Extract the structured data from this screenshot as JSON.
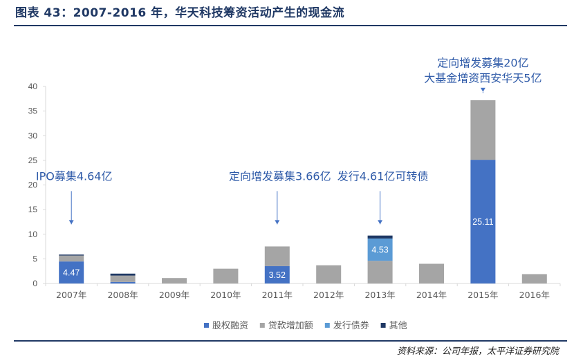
{
  "header": {
    "title": "图表 43：2007-2016 年，华天科技筹资活动产生的现金流"
  },
  "footer": {
    "source": "资料来源：公司年报，太平洋证券研究院"
  },
  "chart_data": {
    "type": "bar",
    "stacked": true,
    "categories": [
      "2007年",
      "2008年",
      "2009年",
      "2010年",
      "2011年",
      "2012年",
      "2013年",
      "2014年",
      "2015年",
      "2016年"
    ],
    "series": [
      {
        "name": "股权融资",
        "color": "#4472c4",
        "values": [
          4.47,
          0.3,
          0,
          0,
          3.52,
          0,
          0,
          0,
          25.11,
          0
        ]
      },
      {
        "name": "贷款增加额",
        "color": "#a5a5a5",
        "values": [
          1.2,
          1.3,
          1.1,
          3.0,
          4.0,
          3.7,
          4.6,
          4.0,
          12.1,
          1.9
        ]
      },
      {
        "name": "发行债券",
        "color": "#5b9bd5",
        "values": [
          0,
          0,
          0,
          0,
          0,
          0,
          4.53,
          0,
          0,
          0
        ]
      },
      {
        "name": "其他",
        "color": "#1f3864",
        "values": [
          0.2,
          0.4,
          0,
          0,
          0,
          0,
          0.6,
          0,
          0,
          0
        ]
      }
    ],
    "ylim": [
      0,
      40
    ],
    "yticks": [
      0,
      5,
      10,
      15,
      20,
      25,
      30,
      35,
      40
    ],
    "grid": false,
    "legend_position": "bottom",
    "data_labels": [
      {
        "category": "2007年",
        "series": "股权融资",
        "text": "4.47"
      },
      {
        "category": "2011年",
        "series": "股权融资",
        "text": "3.52"
      },
      {
        "category": "2013年",
        "series": "发行债券",
        "text": "4.53"
      },
      {
        "category": "2015年",
        "series": "股权融资",
        "text": "25.11"
      }
    ],
    "annotations": [
      {
        "category": "2007年",
        "lines": [
          "IPO募集4.64亿"
        ],
        "y": 21
      },
      {
        "category": "2011年",
        "lines": [
          "定向增发募集3.66亿"
        ],
        "y": 21
      },
      {
        "category": "2013年",
        "lines": [
          "发行4.61亿可转债"
        ],
        "y": 21
      },
      {
        "category": "2015年",
        "lines": [
          "定向增发募集20亿",
          "大基金增资西安华天5亿"
        ],
        "y": 44
      }
    ]
  }
}
